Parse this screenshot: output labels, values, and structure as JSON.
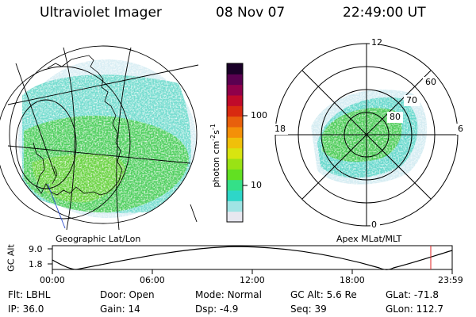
{
  "header": {
    "instrument": "Ultraviolet Imager",
    "date": "08 Nov 07",
    "time": "22:49:00 UT"
  },
  "left_panel": {
    "caption": "Geographic Lat/Lon"
  },
  "right_panel": {
    "caption": "Apex MLat/MLT",
    "mlt_labels": {
      "top": "12",
      "left": "18",
      "right": "6",
      "bottom": "0"
    },
    "lat_labels": [
      "60",
      "70",
      "80"
    ]
  },
  "colorbar": {
    "label_prefix": "photon cm",
    "label_exp1": "-2",
    "label_mid": "s",
    "label_exp2": "-1",
    "ticks": [
      "100",
      "10"
    ],
    "colors": [
      "#e8e8f0",
      "#a0e4e4",
      "#2ed6c8",
      "#34e088",
      "#62e022",
      "#9ae214",
      "#d8e410",
      "#f0c00a",
      "#f49008",
      "#e8600c",
      "#d82a10",
      "#c00a2a",
      "#90004a",
      "#5a0050",
      "#1a0028"
    ]
  },
  "gc_alt_plot": {
    "ylabel": "GC Alt",
    "ymax": "9.0",
    "ymin": "1.8",
    "xticks": [
      "00:00",
      "06:00",
      "12:00",
      "18:00",
      "23:59"
    ],
    "marker_time": "22:49:00",
    "marker_color": "#e02020"
  },
  "info": {
    "row1": [
      {
        "label": "Flt:",
        "value": "LBHL"
      },
      {
        "label": "Door:",
        "value": "Open"
      },
      {
        "label": "Mode:",
        "value": "Normal"
      },
      {
        "label": "GC Alt:",
        "value": "5.6 Re"
      },
      {
        "label": "GLat:",
        "value": "-71.8"
      }
    ],
    "row2": [
      {
        "label": "IP:",
        "value": "36.0"
      },
      {
        "label": "Gain:",
        "value": "14"
      },
      {
        "label": "Dsp:",
        "value": "-4.9"
      },
      {
        "label": "Seq:",
        "value": "39"
      },
      {
        "label": "GLon:",
        "value": "112.7"
      }
    ]
  },
  "colors": {
    "aurora_green": "#4ccc5c",
    "aurora_cyan": "#66dcd0",
    "haze": "#d6ecf2",
    "grid": "#000000"
  }
}
